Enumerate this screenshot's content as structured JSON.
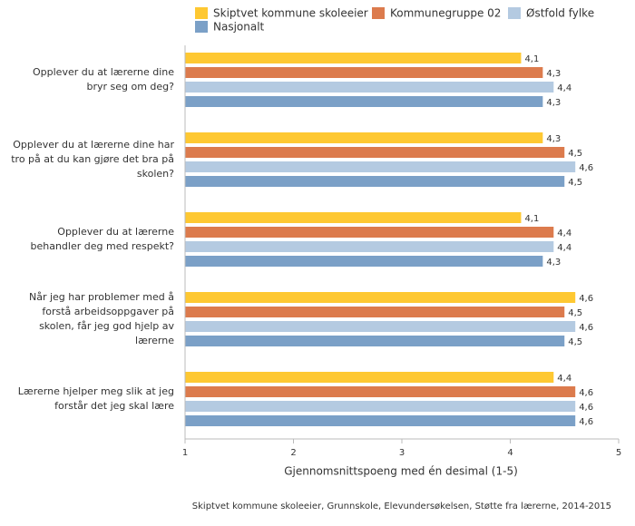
{
  "chart_data": {
    "type": "bar",
    "orientation": "horizontal",
    "categories": [
      "Opplever du at lærerne dine bryr seg om deg?",
      "Opplever du at lærerne dine har tro på at du kan gjøre det bra på skolen?",
      "Opplever du at lærerne behandler deg med respekt?",
      "Når jeg har problemer med å forstå arbeidsoppgaver på skolen, får jeg god hjelp av lærerne",
      "Lærerne hjelper meg slik at jeg forstår det jeg skal lære"
    ],
    "series": [
      {
        "name": "Skiptvet kommune skoleeier",
        "color": "#fec832",
        "values": [
          4.1,
          4.3,
          4.1,
          4.6,
          4.4
        ],
        "value_labels": [
          "4,1",
          "4,3",
          "4,1",
          "4,6",
          "4,4"
        ]
      },
      {
        "name": "Kommunegruppe 02",
        "color": "#dc7b4d",
        "values": [
          4.3,
          4.5,
          4.4,
          4.5,
          4.6
        ],
        "value_labels": [
          "4,3",
          "4,5",
          "4,4",
          "4,5",
          "4,6"
        ]
      },
      {
        "name": "Østfold fylke",
        "color": "#b4cae1",
        "values": [
          4.4,
          4.6,
          4.4,
          4.6,
          4.6
        ],
        "value_labels": [
          "4,4",
          "4,6",
          "4,4",
          "4,6",
          "4,6"
        ]
      },
      {
        "name": "Nasjonalt",
        "color": "#7ba0c7",
        "values": [
          4.3,
          4.5,
          4.3,
          4.5,
          4.6
        ],
        "value_labels": [
          "4,3",
          "4,5",
          "4,3",
          "4,5",
          "4,6"
        ]
      }
    ],
    "xlim": [
      1,
      5
    ],
    "xticks": [
      1,
      2,
      3,
      4,
      5
    ],
    "xlabel": "Gjennomsnittspoeng med én desimal (1-5)",
    "source": "Skiptvet kommune skoleeier, Grunnskole, Elevundersøkelsen, Støtte fra lærerne, 2014-2015"
  }
}
